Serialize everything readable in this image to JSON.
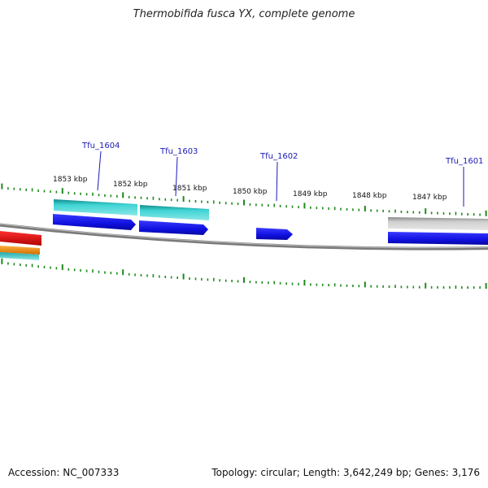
{
  "title": "Thermobifida fusca YX, complete genome",
  "accession_text": "Accession: NC_007333",
  "topology_text": "Topology: circular; Length: 3,642,249 bp; Genes: 3,176",
  "scale_labels": [
    "1853 kbp",
    "1852 kbp",
    "1851 kbp",
    "1850 kbp",
    "1849 kbp",
    "1848 kbp",
    "1847 kbp"
  ],
  "genes": [
    "Tfu_1604",
    "Tfu_1603",
    "Tfu_1602",
    "Tfu_1601"
  ],
  "colors": {
    "backbone": "#8a8a8a",
    "ticks": "#1f8a1f",
    "cds": "#1010e0",
    "gene_cyan": "#30c8c8",
    "gene_grey": "#c8c8c8",
    "red": "#e01010",
    "orange": "#f08c20",
    "label": "#1a1ab8"
  }
}
